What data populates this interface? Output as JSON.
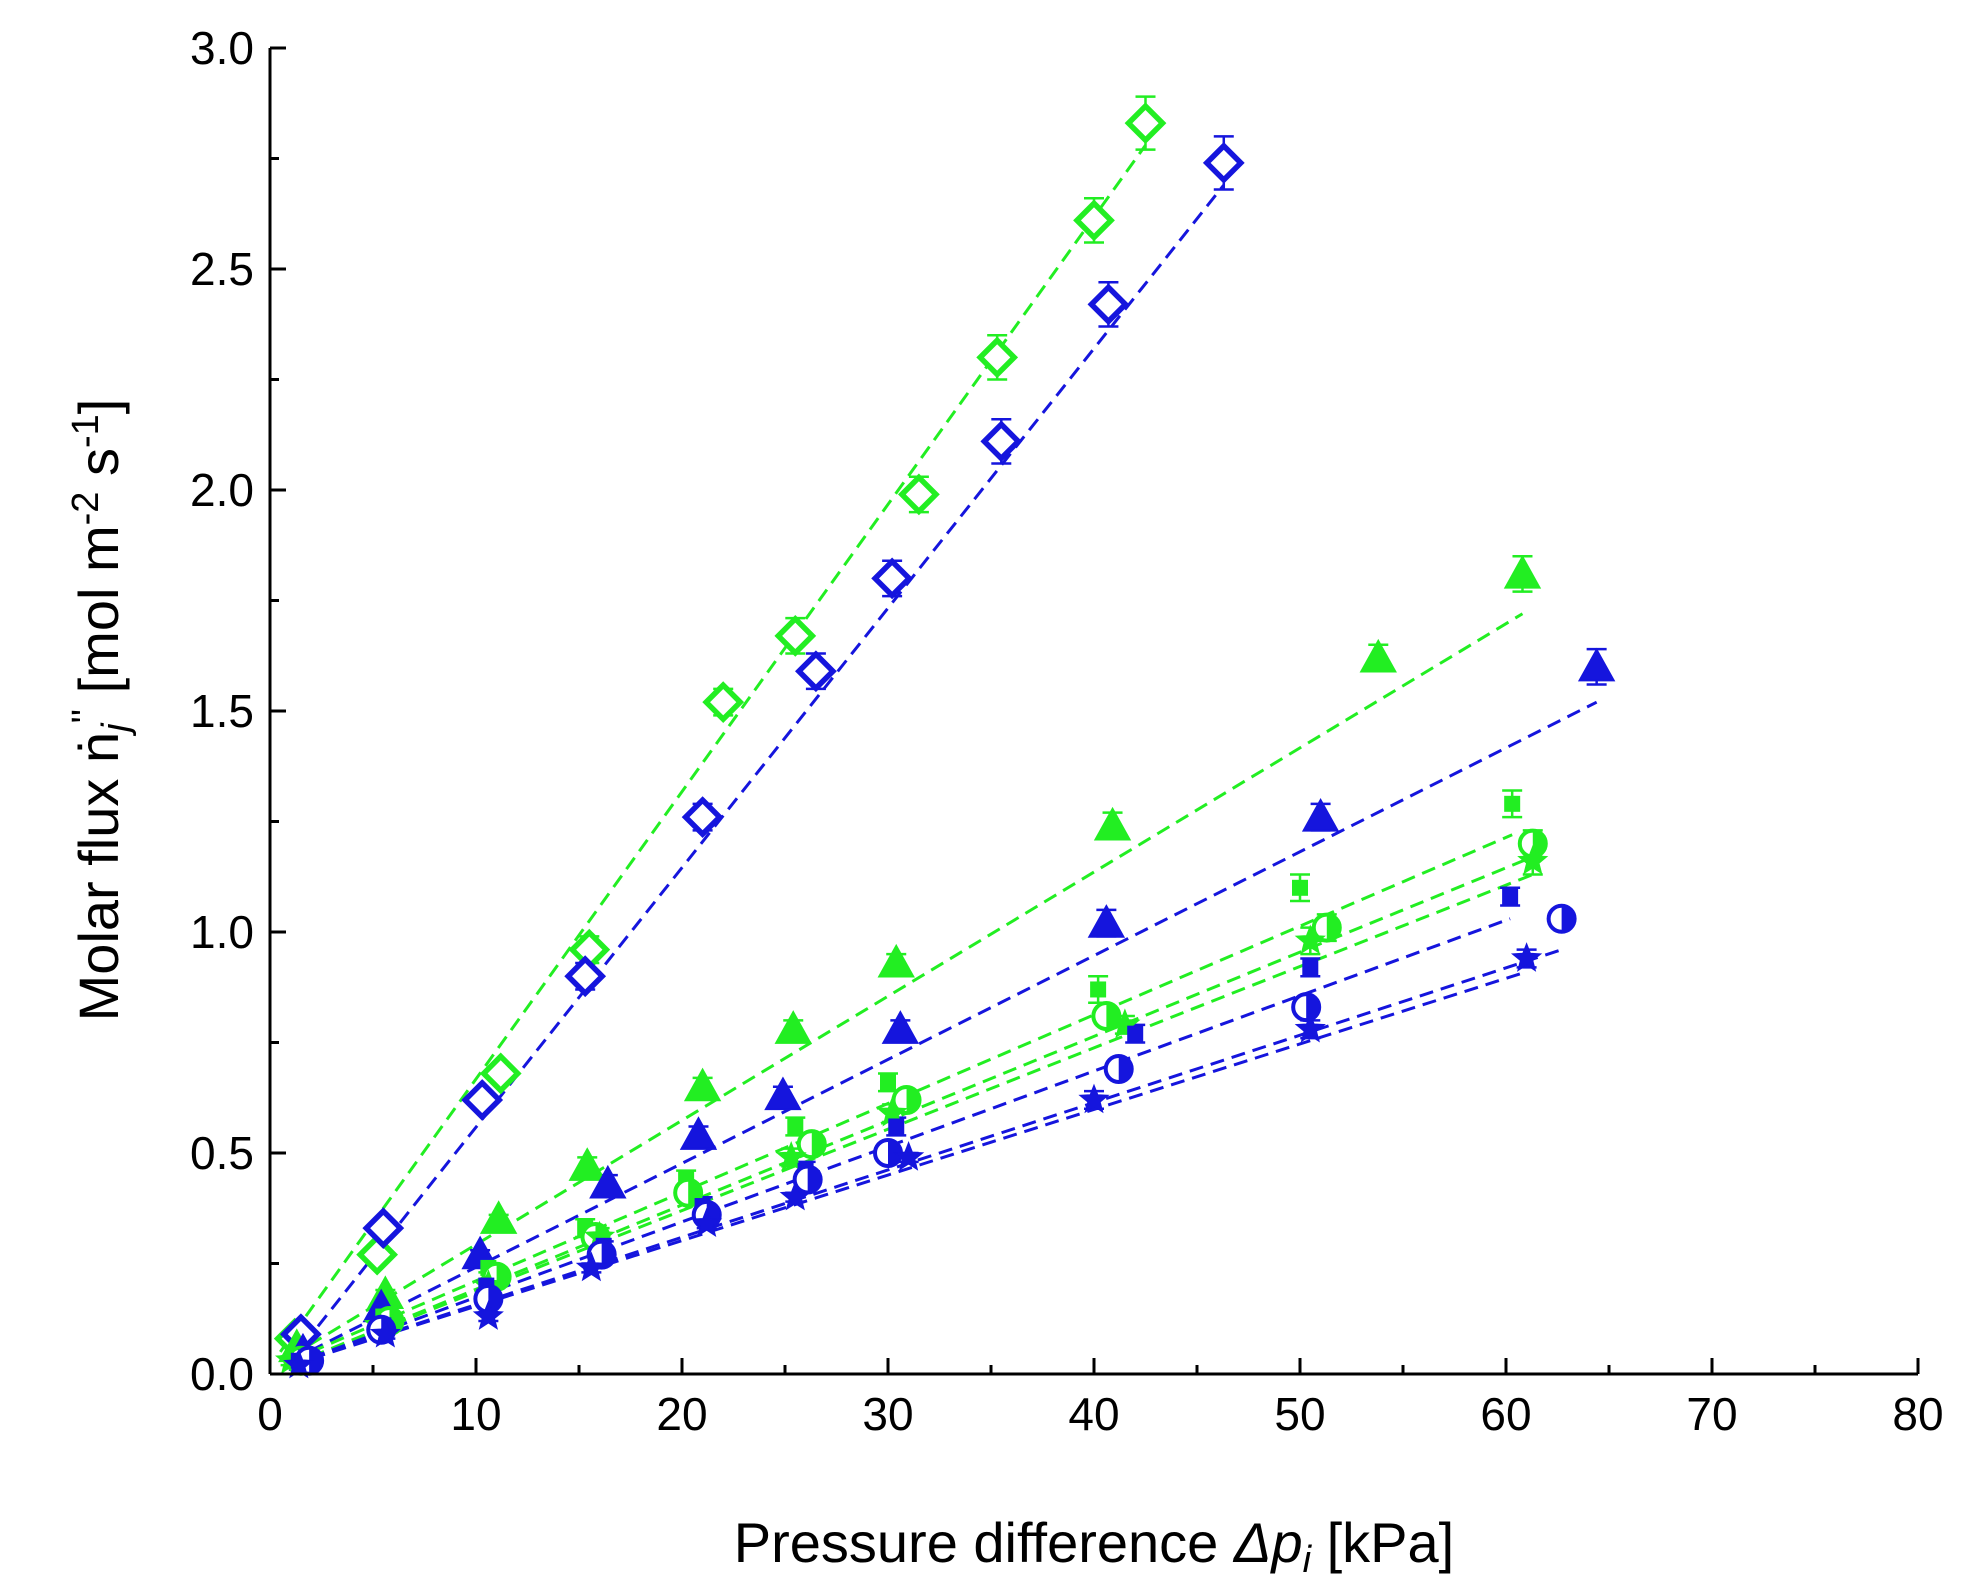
{
  "chart_data": {
    "type": "scatter",
    "xlabel": {
      "prefix": "Pressure difference ",
      "symbol": "Δp",
      "sub": "i",
      "suffix": " [kPa]"
    },
    "ylabel": {
      "prefix": "Molar flux ",
      "symbol": "ṅ",
      "sub": "j",
      "sup": "''",
      "unit_a": " [mol m",
      "exp_a": "-2",
      "unit_b": " s",
      "exp_b": "-1",
      "unit_c": "]"
    },
    "xlim": [
      0,
      80
    ],
    "ylim": [
      0,
      3.0
    ],
    "x_ticks": [
      "0",
      "10",
      "20",
      "30",
      "40",
      "50",
      "60",
      "70",
      "80"
    ],
    "y_ticks": [
      "0.0",
      "0.5",
      "1.0",
      "1.5",
      "2.0",
      "2.5",
      "3.0"
    ],
    "grid": false,
    "colors": {
      "green": "#22ee22",
      "blue": "#1515dd"
    },
    "series": [
      {
        "marker": "diamond-open",
        "color": "green",
        "x": [
          1.2,
          5.2,
          11.2,
          15.5,
          22.0,
          25.5,
          31.5,
          35.3,
          40.0,
          42.5
        ],
        "y": [
          0.08,
          0.27,
          0.68,
          0.96,
          1.52,
          1.67,
          1.99,
          2.3,
          2.61,
          2.83
        ],
        "err": [
          0.02,
          0.02,
          0.02,
          0.03,
          0.03,
          0.04,
          0.04,
          0.05,
          0.05,
          0.06
        ],
        "fit": [
          [
            0.5,
            0.05
          ],
          [
            42.5,
            2.78
          ]
        ]
      },
      {
        "marker": "diamond-open",
        "color": "blue",
        "x": [
          1.5,
          5.5,
          10.3,
          15.3,
          21.0,
          26.5,
          30.2,
          35.5,
          40.7,
          46.3
        ],
        "y": [
          0.09,
          0.33,
          0.62,
          0.9,
          1.26,
          1.59,
          1.8,
          2.11,
          2.42,
          2.74
        ],
        "err": [
          0.02,
          0.02,
          0.02,
          0.03,
          0.03,
          0.04,
          0.04,
          0.05,
          0.05,
          0.06
        ],
        "fit": [
          [
            1.0,
            0.03
          ],
          [
            46.3,
            2.69
          ]
        ]
      },
      {
        "marker": "triangle-filled",
        "color": "green",
        "x": [
          1.3,
          5.6,
          11.1,
          15.4,
          21.0,
          25.4,
          30.4,
          40.9,
          53.8,
          60.8
        ],
        "y": [
          0.06,
          0.18,
          0.35,
          0.47,
          0.65,
          0.78,
          0.93,
          1.24,
          1.62,
          1.81
        ],
        "err": [
          0.01,
          0.01,
          0.01,
          0.02,
          0.02,
          0.02,
          0.02,
          0.03,
          0.03,
          0.04
        ],
        "fit": [
          [
            1.0,
            0.04
          ],
          [
            60.8,
            1.72
          ]
        ]
      },
      {
        "marker": "triangle-filled",
        "color": "blue",
        "x": [
          1.6,
          5.4,
          10.2,
          16.4,
          20.8,
          24.9,
          30.6,
          40.6,
          51.0,
          64.4
        ],
        "y": [
          0.05,
          0.15,
          0.27,
          0.43,
          0.54,
          0.63,
          0.78,
          1.02,
          1.26,
          1.6
        ],
        "err": [
          0.01,
          0.01,
          0.01,
          0.02,
          0.02,
          0.02,
          0.02,
          0.03,
          0.03,
          0.04
        ],
        "fit": [
          [
            1.0,
            0.03
          ],
          [
            64.4,
            1.52
          ]
        ]
      },
      {
        "marker": "square-filled-small",
        "color": "green",
        "x": [
          1.4,
          5.5,
          10.6,
          15.3,
          20.2,
          25.5,
          30.0,
          40.2,
          50.0,
          60.3
        ],
        "y": [
          0.04,
          0.13,
          0.24,
          0.33,
          0.44,
          0.56,
          0.66,
          0.87,
          1.1,
          1.29
        ],
        "err": [
          0.01,
          0.01,
          0.01,
          0.02,
          0.02,
          0.02,
          0.02,
          0.03,
          0.03,
          0.03
        ],
        "fit": [
          [
            1.0,
            0.03
          ],
          [
            60.3,
            1.22
          ]
        ]
      },
      {
        "marker": "circle-half",
        "color": "green",
        "x": [
          1.5,
          5.8,
          11.0,
          15.8,
          20.3,
          26.3,
          30.9,
          40.6,
          51.3,
          61.3
        ],
        "y": [
          0.03,
          0.12,
          0.22,
          0.31,
          0.41,
          0.52,
          0.62,
          0.81,
          1.01,
          1.2
        ],
        "err": [
          0.01,
          0.01,
          0.01,
          0.02,
          0.02,
          0.02,
          0.02,
          0.02,
          0.03,
          0.03
        ],
        "fit": [
          [
            1.0,
            0.02
          ],
          [
            61.3,
            1.17
          ]
        ]
      },
      {
        "marker": "star",
        "color": "green",
        "x": [
          1.0,
          5.3,
          10.6,
          16.0,
          25.3,
          30.2,
          41.5,
          50.5,
          61.3
        ],
        "y": [
          0.03,
          0.11,
          0.2,
          0.31,
          0.49,
          0.59,
          0.79,
          0.98,
          1.16
        ],
        "err": [
          0.01,
          0.01,
          0.01,
          0.02,
          0.02,
          0.02,
          0.02,
          0.03,
          0.03
        ],
        "fit": [
          [
            1.0,
            0.02
          ],
          [
            61.3,
            1.13
          ]
        ]
      },
      {
        "marker": "square-filled-small",
        "color": "blue",
        "x": [
          1.4,
          5.5,
          10.5,
          16.2,
          21.0,
          26.0,
          30.4,
          42.0,
          50.5,
          60.2
        ],
        "y": [
          0.03,
          0.11,
          0.2,
          0.29,
          0.38,
          0.46,
          0.56,
          0.77,
          0.92,
          1.08
        ],
        "err": [
          0.01,
          0.01,
          0.01,
          0.01,
          0.02,
          0.02,
          0.02,
          0.02,
          0.02,
          0.02
        ],
        "fit": [
          [
            1.0,
            0.02
          ],
          [
            60.2,
            1.03
          ]
        ]
      },
      {
        "marker": "circle-half",
        "color": "blue",
        "x": [
          1.9,
          5.4,
          10.6,
          16.1,
          21.2,
          26.1,
          30.0,
          41.2,
          50.3,
          62.7
        ],
        "y": [
          0.03,
          0.1,
          0.17,
          0.27,
          0.36,
          0.44,
          0.5,
          0.69,
          0.83,
          1.03
        ],
        "err": [
          0.01,
          0.01,
          0.01,
          0.01,
          0.01,
          0.01,
          0.02,
          0.02,
          0.02,
          0.02
        ],
        "fit": [
          [
            1.0,
            0.02
          ],
          [
            62.7,
            0.96
          ]
        ]
      },
      {
        "marker": "star",
        "color": "blue",
        "x": [
          1.4,
          5.6,
          10.6,
          15.6,
          21.2,
          25.5,
          31.0,
          40.0,
          50.5,
          61.0
        ],
        "y": [
          0.02,
          0.09,
          0.13,
          0.24,
          0.34,
          0.4,
          0.49,
          0.62,
          0.78,
          0.94
        ],
        "err": [
          0.01,
          0.01,
          0.01,
          0.01,
          0.01,
          0.01,
          0.01,
          0.02,
          0.02,
          0.02
        ],
        "fit": [
          [
            1.0,
            0.02
          ],
          [
            61.0,
            0.91
          ]
        ]
      }
    ]
  }
}
